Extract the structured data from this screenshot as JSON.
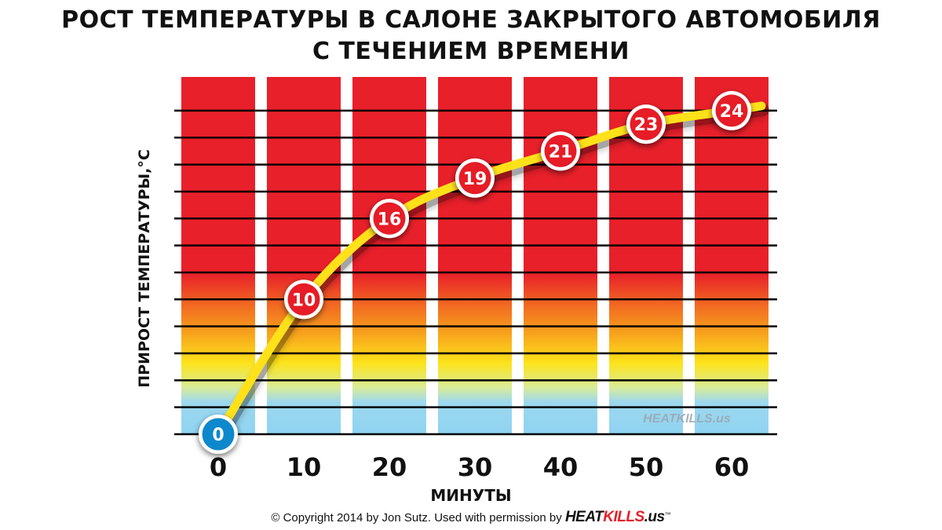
{
  "chart_data": {
    "type": "line",
    "title": "РОСТ ТЕМПЕРАТУРЫ В САЛОНЕ ЗАКРЫТОГО АВТОМОБИЛЯ\nС ТЕЧЕНИЕМ ВРЕМЕНИ",
    "xlabel": "МИНУТЫ",
    "ylabel": "ПРИРОСТ ТЕМПЕРАТУРЫ,°C",
    "x": [
      0,
      10,
      20,
      30,
      40,
      50,
      60
    ],
    "x_tick_labels": [
      "0",
      "10",
      "20",
      "30",
      "40",
      "50",
      "60"
    ],
    "series": [
      {
        "values": [
          0,
          10,
          16,
          19,
          21,
          23,
          24
        ],
        "data_labels": [
          "0",
          "10",
          "16",
          "19",
          "21",
          "23",
          "24"
        ]
      }
    ],
    "ylim": [
      0,
      26.5
    ],
    "grid": true,
    "watermark": "HEATKILLS.us"
  },
  "footer": {
    "text": "© Copyright 2014 by Jon Sutz.  Used with permission by",
    "brand_heat": "HEAT",
    "brand_kills": "KILLS",
    "brand_us": ".us",
    "trademark": "™"
  },
  "colors": {
    "bar_top": "#e8202a",
    "bar_orange": "#f7941d",
    "bar_yellow": "#fde31a",
    "bar_bottom": "#8fd3f2",
    "curve": "#ffe11a",
    "marker_hot": "#e61e28",
    "marker_cold": "#1188cc"
  }
}
